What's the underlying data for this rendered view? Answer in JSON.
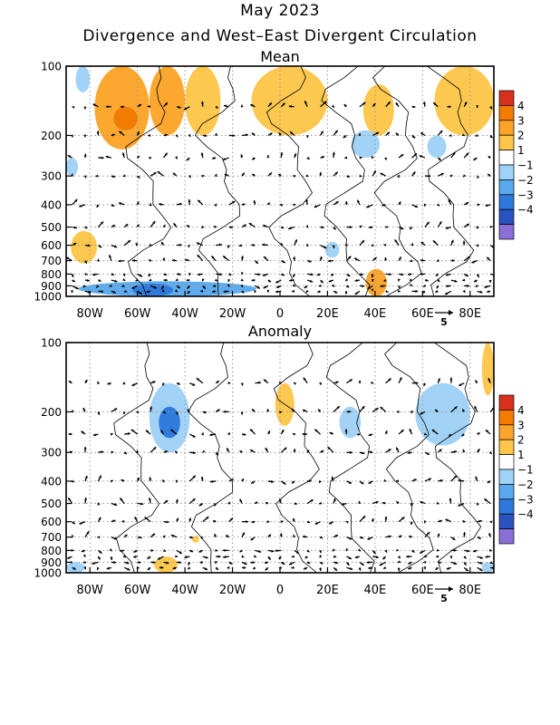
{
  "figure": {
    "title": "May 2023",
    "subtitle": "Divergence and West–East Divergent Circulation"
  },
  "chart_data": [
    {
      "type": "heatmap",
      "panel_title": "Mean",
      "x_tick_labels": [
        "80W",
        "60W",
        "40W",
        "20W",
        "0",
        "20E",
        "40E",
        "60E",
        "80E"
      ],
      "x_ticks_deg": [
        -80,
        -60,
        -40,
        -20,
        0,
        20,
        40,
        60,
        80
      ],
      "xlim_deg": [
        -90,
        90
      ],
      "y_tick_labels": [
        "100",
        "200",
        "300",
        "400",
        "500",
        "600",
        "700",
        "800",
        "900",
        "1000"
      ],
      "y_ticks_hpa": [
        100,
        200,
        300,
        400,
        500,
        600,
        700,
        800,
        900,
        1000
      ],
      "ylim_hpa": [
        1000,
        100
      ],
      "y_scale": "log",
      "vector_scale_label": "5",
      "colorbar": {
        "labels": [
          "4",
          "3",
          "2",
          "1",
          "−1",
          "−2",
          "−3",
          "−4"
        ],
        "colors": [
          "#d7301f",
          "#f27b00",
          "#fba429",
          "#fdc64a",
          "#ffffff",
          "#9fd2f7",
          "#59a9ec",
          "#2d78dc",
          "#2a52c0",
          "#8a6fd9"
        ]
      },
      "shaded_regions": [
        {
          "lon": [
            -78,
            -55
          ],
          "p": [
            100,
            230
          ],
          "value": 2
        },
        {
          "lon": [
            -70,
            -60
          ],
          "p": [
            150,
            190
          ],
          "value": 3
        },
        {
          "lon": [
            -55,
            -40
          ],
          "p": [
            100,
            200
          ],
          "value": 2
        },
        {
          "lon": [
            -40,
            -25
          ],
          "p": [
            100,
            200
          ],
          "value": 1.5
        },
        {
          "lon": [
            -12,
            20
          ],
          "p": [
            100,
            200
          ],
          "value": 1.5
        },
        {
          "lon": [
            35,
            48
          ],
          "p": [
            120,
            200
          ],
          "value": 1.5
        },
        {
          "lon": [
            65,
            90
          ],
          "p": [
            100,
            200
          ],
          "value": 1.5
        },
        {
          "lon": [
            -88,
            -77
          ],
          "p": [
            520,
            720
          ],
          "value": 1.5
        },
        {
          "lon": [
            36,
            45
          ],
          "p": [
            760,
            1000
          ],
          "value": 2
        },
        {
          "lon": [
            -85,
            -10
          ],
          "p": [
            860,
            1000
          ],
          "value": -2
        },
        {
          "lon": [
            -62,
            -45
          ],
          "p": [
            880,
            1000
          ],
          "value": -3
        },
        {
          "lon": [
            -86,
            -80
          ],
          "p": [
            100,
            130
          ],
          "value": -1.5
        },
        {
          "lon": [
            30,
            42
          ],
          "p": [
            190,
            250
          ],
          "value": -1.5
        },
        {
          "lon": [
            62,
            70
          ],
          "p": [
            200,
            250
          ],
          "value": -1.5
        },
        {
          "lon": [
            19,
            25
          ],
          "p": [
            580,
            680
          ],
          "value": -1.5
        },
        {
          "lon": [
            -90,
            -85
          ],
          "p": [
            250,
            300
          ],
          "value": -1.5
        }
      ]
    },
    {
      "type": "heatmap",
      "panel_title": "Anomaly",
      "x_tick_labels": [
        "80W",
        "60W",
        "40W",
        "20W",
        "0",
        "20E",
        "40E",
        "60E",
        "80E"
      ],
      "x_ticks_deg": [
        -80,
        -60,
        -40,
        -20,
        0,
        20,
        40,
        60,
        80
      ],
      "xlim_deg": [
        -90,
        90
      ],
      "y_tick_labels": [
        "100",
        "200",
        "300",
        "400",
        "500",
        "600",
        "700",
        "800",
        "900",
        "1000"
      ],
      "y_ticks_hpa": [
        100,
        200,
        300,
        400,
        500,
        600,
        700,
        800,
        900,
        1000
      ],
      "ylim_hpa": [
        1000,
        100
      ],
      "y_scale": "log",
      "vector_scale_label": "5",
      "colorbar": {
        "labels": [
          "4",
          "3",
          "2",
          "1",
          "−1",
          "−2",
          "−3",
          "−4"
        ],
        "colors": [
          "#d7301f",
          "#f27b00",
          "#fba429",
          "#fdc64a",
          "#ffffff",
          "#9fd2f7",
          "#59a9ec",
          "#2d78dc",
          "#2a52c0",
          "#8a6fd9"
        ]
      },
      "shaded_regions": [
        {
          "lon": [
            -55,
            -38
          ],
          "p": [
            150,
            300
          ],
          "value": -1.5
        },
        {
          "lon": [
            -51,
            -42
          ],
          "p": [
            190,
            260
          ],
          "value": -2.5
        },
        {
          "lon": [
            25,
            34
          ],
          "p": [
            190,
            260
          ],
          "value": -1.5
        },
        {
          "lon": [
            57,
            80
          ],
          "p": [
            150,
            280
          ],
          "value": -1.5
        },
        {
          "lon": [
            -2,
            6
          ],
          "p": [
            150,
            230
          ],
          "value": 1.5
        },
        {
          "lon": [
            85,
            90
          ],
          "p": [
            100,
            170
          ],
          "value": 1.5
        },
        {
          "lon": [
            -53,
            -43
          ],
          "p": [
            850,
            1000
          ],
          "value": 1.5
        },
        {
          "lon": [
            -37,
            -34
          ],
          "p": [
            690,
            740
          ],
          "value": 1.5
        },
        {
          "lon": [
            -90,
            -82
          ],
          "p": [
            900,
            1000
          ],
          "value": -1.5
        },
        {
          "lon": [
            85,
            90
          ],
          "p": [
            900,
            1000
          ],
          "value": -1.5
        }
      ]
    }
  ]
}
